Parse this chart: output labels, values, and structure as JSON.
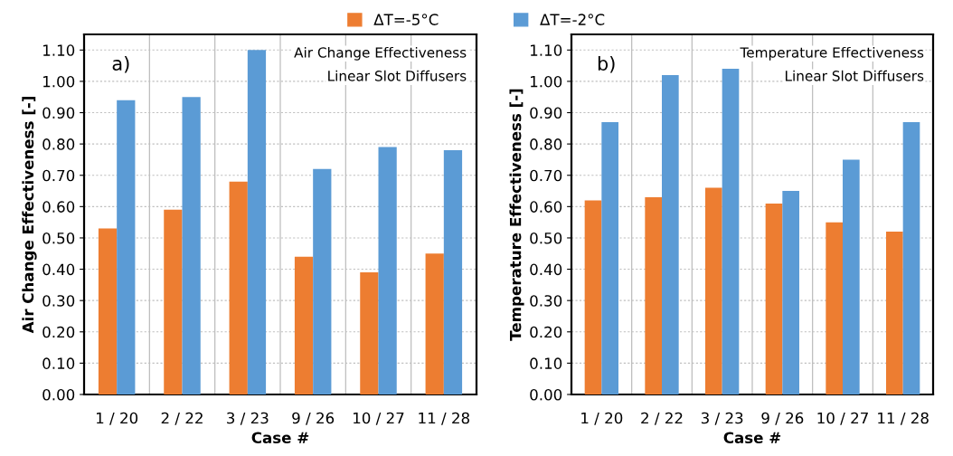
{
  "chart_data": [
    {
      "type": "bar",
      "xlabel": "Case #",
      "ylabel": "Air Change Effectiveness [-]",
      "annotations": [
        "a)",
        "Air Change Effectiveness",
        "Linear Slot Diffusers"
      ],
      "categories": [
        "1 / 20",
        "2 / 22",
        "3 / 23",
        "9 / 26",
        "10 / 27",
        "11 / 28"
      ],
      "series": [
        {
          "name": "ΔT=-5°C",
          "color": "#ed7d31",
          "values": [
            0.53,
            0.59,
            0.68,
            0.44,
            0.39,
            0.45
          ]
        },
        {
          "name": "ΔT=-2°C",
          "color": "#5b9bd5",
          "values": [
            0.94,
            0.95,
            1.1,
            0.72,
            0.79,
            0.78
          ]
        }
      ],
      "ylim": [
        0,
        1.15
      ],
      "yticks": [
        {
          "value": 0,
          "label": "0.00"
        },
        {
          "value": 0.1,
          "label": "0.10"
        },
        {
          "value": 0.2,
          "label": "0.20"
        },
        {
          "value": 0.3,
          "label": "0.30"
        },
        {
          "value": 0.4,
          "label": "0.40"
        },
        {
          "value": 0.5,
          "label": "0.50"
        },
        {
          "value": 0.6,
          "label": "0.60"
        },
        {
          "value": 0.7,
          "label": "0.70"
        },
        {
          "value": 0.8,
          "label": "0.80"
        },
        {
          "value": 0.9,
          "label": "0.90"
        },
        {
          "value": 1.0,
          "label": "1.00"
        },
        {
          "value": 1.1,
          "label": "1.10"
        }
      ],
      "grid": true,
      "legend": "top"
    },
    {
      "type": "bar",
      "xlabel": "Case #",
      "ylabel": "Temperature Effectiveness [-]",
      "annotations": [
        "b)",
        "Temperature Effectiveness",
        "Linear Slot Diffusers"
      ],
      "categories": [
        "1 / 20",
        "2 / 22",
        "3 / 23",
        "9 / 26",
        "10 / 27",
        "11 / 28"
      ],
      "series": [
        {
          "color": "#ed7d31",
          "values": [
            0.62,
            0.63,
            0.66,
            0.61,
            0.55,
            0.52
          ]
        },
        {
          "color": "#5b9bd5",
          "values": [
            0.87,
            1.02,
            1.04,
            0.65,
            0.75,
            0.87
          ]
        }
      ],
      "ylim": [
        0,
        1.15
      ],
      "yticks": [
        {
          "value": 0,
          "label": "0.00"
        },
        {
          "value": 0.1,
          "label": "0.10"
        },
        {
          "value": 0.2,
          "label": "0.20"
        },
        {
          "value": 0.3,
          "label": "0.30"
        },
        {
          "value": 0.4,
          "label": "0.40"
        },
        {
          "value": 0.5,
          "label": "0.50"
        },
        {
          "value": 0.6,
          "label": "0.60"
        },
        {
          "value": 0.7,
          "label": "0.70"
        },
        {
          "value": 0.8,
          "label": "0.80"
        },
        {
          "value": 0.9,
          "label": "0.90"
        },
        {
          "value": 1.0,
          "label": "1.00"
        },
        {
          "value": 1.1,
          "label": "1.10"
        }
      ],
      "grid": true
    }
  ]
}
